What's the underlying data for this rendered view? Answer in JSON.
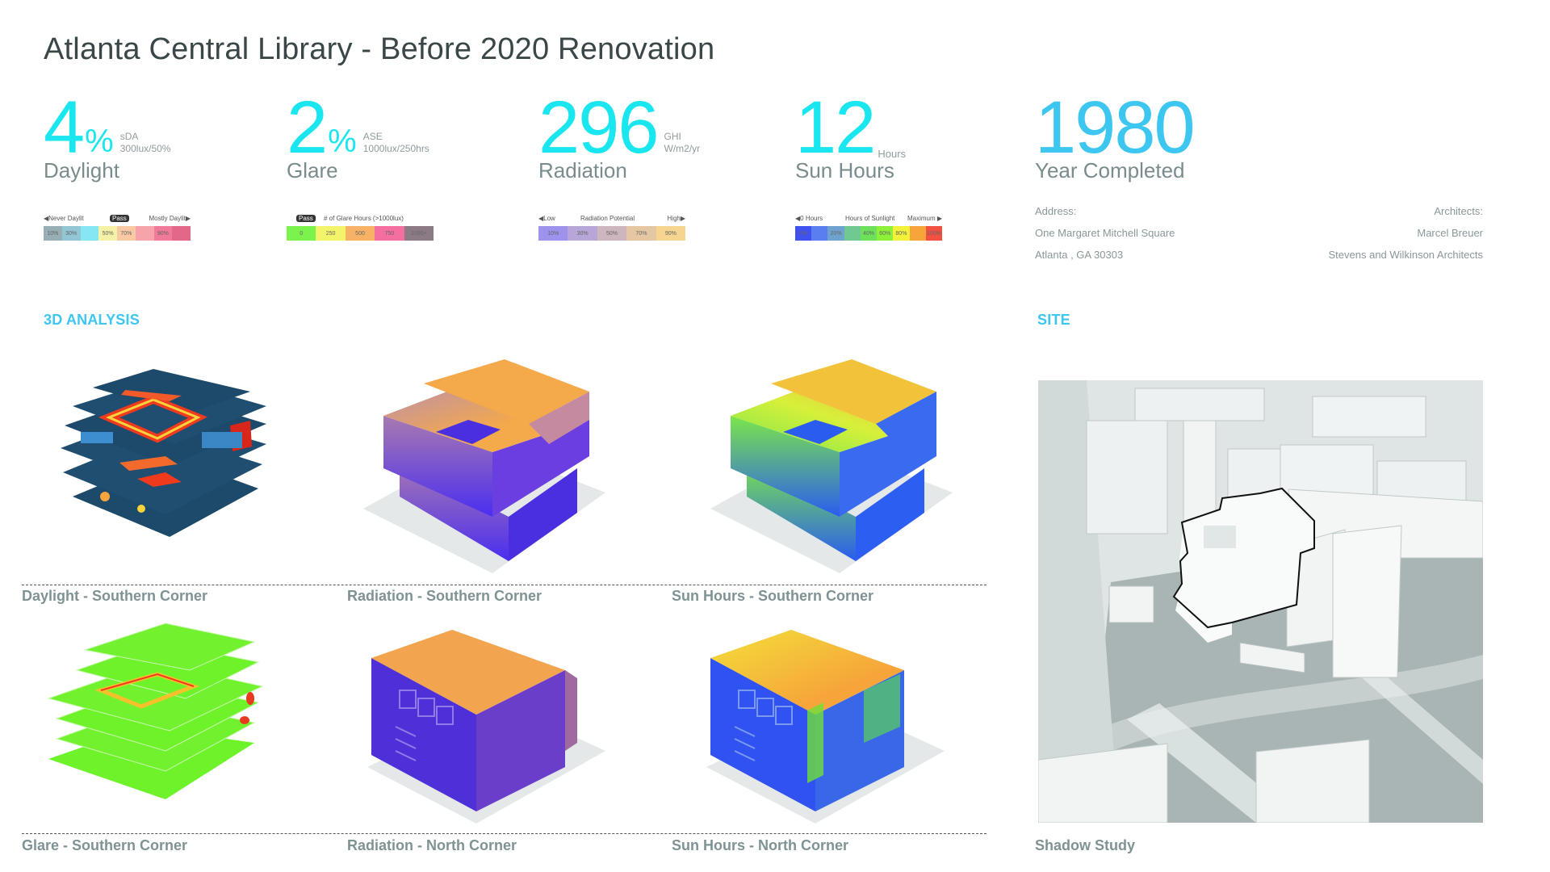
{
  "title": "Atlanta Central Library - Before 2020 Renovation",
  "colors": {
    "accent_cyan": "#19e6ef",
    "accent_blue": "#3cc6f0",
    "title_text": "#3b4648",
    "label_text": "#7a8b8d",
    "caption_text": "#7f9294"
  },
  "metrics": [
    {
      "value": "4",
      "suffix": "%",
      "unit_line1": "sDA",
      "unit_line2": "300lux/50%",
      "label": "Daylight"
    },
    {
      "value": "2",
      "suffix": "%",
      "unit_line1": "ASE",
      "unit_line2": "1000lux/250hrs",
      "label": "Glare"
    },
    {
      "value": "296",
      "suffix": "",
      "unit_line1": "GHI",
      "unit_line2": "W/m2/yr",
      "label": "Radiation"
    },
    {
      "value": "12",
      "suffix": "",
      "unit_line1": "",
      "unit_line2": "Hours",
      "label": "Sun Hours"
    },
    {
      "value": "1980",
      "suffix": "",
      "unit_line1": "",
      "unit_line2": "",
      "label": "Year Completed"
    }
  ],
  "legends": {
    "daylight": {
      "left_label": "◀Never Daylit",
      "pass_label": "Pass",
      "right_label": "Mostly Daylit▶",
      "stops": [
        {
          "label": "10%",
          "color": "#97aeb5"
        },
        {
          "label": "30%",
          "color": "#93c6d4"
        },
        {
          "label": "",
          "color": "#86e6f2"
        },
        {
          "label": "50%",
          "color": "#f5f1a6"
        },
        {
          "label": "70%",
          "color": "#f8c9a3"
        },
        {
          "label": "",
          "color": "#f7a3ac"
        },
        {
          "label": "90%",
          "color": "#f07a98"
        },
        {
          "label": "",
          "color": "#e36789"
        }
      ]
    },
    "glare": {
      "pass_label": "Pass",
      "title": "# of Glare Hours (>1000lux)",
      "stops": [
        {
          "label": "0",
          "color": "#7cf24d"
        },
        {
          "label": "250",
          "color": "#f4f46a"
        },
        {
          "label": "500",
          "color": "#f7b266"
        },
        {
          "label": "750",
          "color": "#f56ea0"
        },
        {
          "label": "1000+",
          "color": "#8c7a86"
        }
      ]
    },
    "radiation": {
      "left_label": "◀Low",
      "title": "Radiation Potential",
      "right_label": "High▶",
      "stops": [
        {
          "label": "10%",
          "color": "#9d93ec"
        },
        {
          "label": "30%",
          "color": "#b7a6d8"
        },
        {
          "label": "50%",
          "color": "#cdb6be"
        },
        {
          "label": "70%",
          "color": "#e6c7a3"
        },
        {
          "label": "90%",
          "color": "#f5d58f"
        }
      ]
    },
    "sun_hours": {
      "left_label": "◀0 Hours",
      "title": "Hours of Sunlight",
      "right_label": "Maximum ▶",
      "stops": [
        {
          "label": "0%",
          "color": "#3f52f0"
        },
        {
          "label": "",
          "color": "#5a7ef0"
        },
        {
          "label": "20%",
          "color": "#6fa3cf"
        },
        {
          "label": "",
          "color": "#71c992"
        },
        {
          "label": "40%",
          "color": "#6ee15a"
        },
        {
          "label": "60%",
          "color": "#8ff03a"
        },
        {
          "label": "80%",
          "color": "#f2f23a"
        },
        {
          "label": "",
          "color": "#f7a43a"
        },
        {
          "label": "100%",
          "color": "#f25040"
        }
      ]
    }
  },
  "info": {
    "address_label": "Address:",
    "address_line1": "One Margaret Mitchell Square",
    "address_line2": "Atlanta , GA 30303",
    "architects_label": "Architects:",
    "architect1": "Marcel Breuer",
    "architect2": "Stevens and Wilkinson Architects"
  },
  "sections": {
    "analysis": "3D ANALYSIS",
    "site": "SITE"
  },
  "analysis_views": [
    {
      "caption": "Daylight - Southern Corner",
      "type": "daylight-floors"
    },
    {
      "caption": "Radiation - Southern Corner",
      "type": "radiation-model"
    },
    {
      "caption": "Sun Hours - Southern Corner",
      "type": "sunhours-model"
    },
    {
      "caption": "Glare - Southern Corner",
      "type": "glare-floors"
    },
    {
      "caption": "Radiation - North Corner",
      "type": "radiation-model"
    },
    {
      "caption": "Sun Hours - North Corner",
      "type": "sunhours-model"
    }
  ],
  "site_view": {
    "caption": "Shadow Study"
  }
}
